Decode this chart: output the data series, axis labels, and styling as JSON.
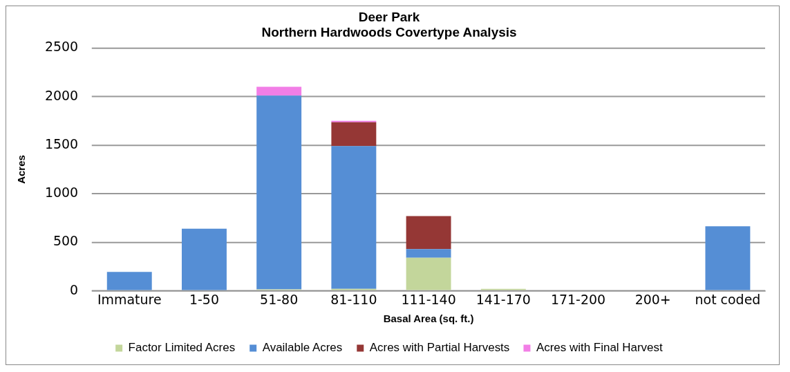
{
  "chart_data": {
    "type": "bar",
    "title": "Deer Park\nNorthern Hardwoods Covertype Analysis",
    "xlabel": "Basal Area (sq. ft.)",
    "ylabel": "Acres",
    "stacked": true,
    "categories": [
      "Immature",
      "1-50",
      "51-80",
      "81-110",
      "111-140",
      "141-170",
      "171-200",
      "200+",
      "not coded"
    ],
    "series": [
      {
        "name": "Factor Limited Acres",
        "color": "#c3d69b",
        "values": [
          0,
          0,
          15,
          20,
          340,
          20,
          0,
          0,
          0
        ]
      },
      {
        "name": "Available Acres",
        "color": "#558ed5",
        "values": [
          195,
          640,
          1995,
          1470,
          90,
          0,
          0,
          0,
          665
        ]
      },
      {
        "name": "Acres with Partial Harvests",
        "color": "#953735",
        "values": [
          0,
          0,
          0,
          245,
          340,
          0,
          0,
          0,
          0
        ]
      },
      {
        "name": "Acres with Final Harvest",
        "color": "#f27ee6",
        "values": [
          0,
          0,
          90,
          15,
          0,
          0,
          0,
          0,
          0
        ]
      }
    ],
    "ylim": [
      0,
      2500
    ],
    "yticks": [
      0,
      500,
      1000,
      1500,
      2000,
      2500
    ],
    "grid": "y",
    "legend": "bottom"
  }
}
